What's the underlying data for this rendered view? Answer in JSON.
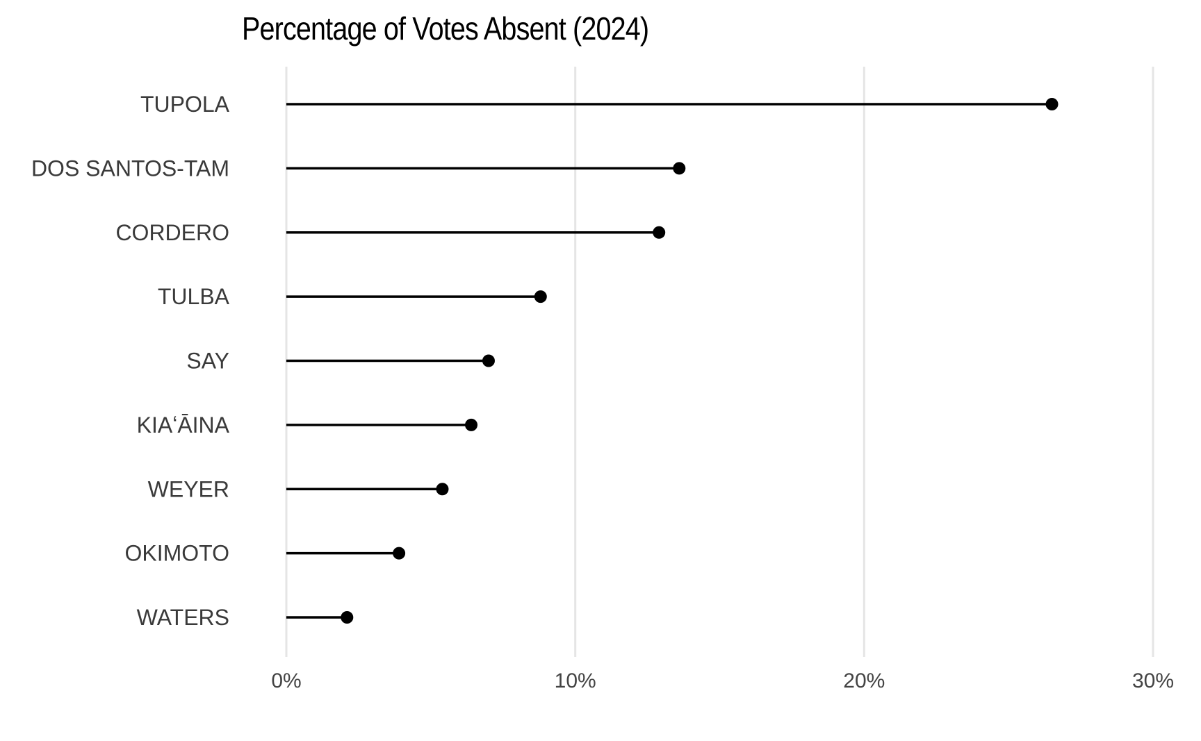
{
  "chart_data": {
    "type": "lollipop",
    "title": "Percentage of Votes Absent (2024)",
    "xlabel": "",
    "ylabel": "",
    "categories": [
      "TUPOLA",
      "DOS SANTOS-TAM",
      "CORDERO",
      "TULBA",
      "SAY",
      "KIAʻĀINA",
      "WEYER",
      "OKIMOTO",
      "WATERS"
    ],
    "values": [
      26.5,
      13.6,
      12.9,
      8.8,
      7.0,
      6.4,
      5.4,
      3.9,
      2.1
    ],
    "unit": "%",
    "xlim": [
      0,
      30
    ],
    "x_ticks": [
      0,
      10,
      20,
      30
    ],
    "x_tick_labels": [
      "0%",
      "10%",
      "20%",
      "30%"
    ],
    "grid": "vertical",
    "legend": "none",
    "colors": {
      "stem": "#000000",
      "dot": "#000000",
      "grid": "#e5e5e5",
      "label": "#3a3a3a"
    }
  }
}
